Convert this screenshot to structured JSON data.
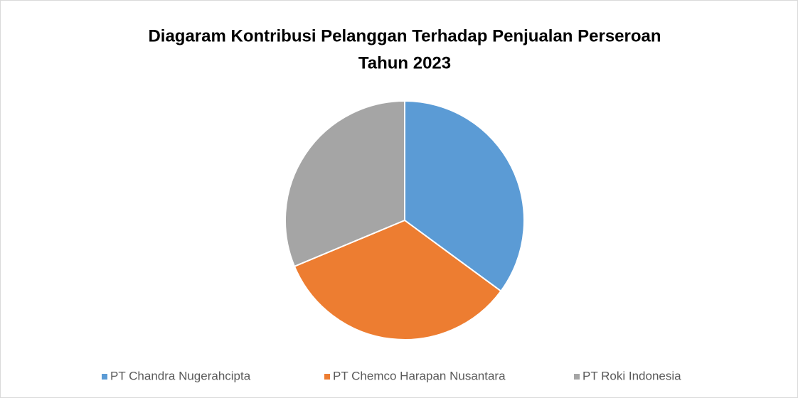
{
  "chart_data": {
    "type": "pie",
    "title": [
      "Diagaram Kontribusi Pelanggan Terhadap Penjualan Perseroan",
      "Tahun 2023"
    ],
    "categories": [
      "PT Chandra Nugerahcipta",
      "PT Chemco Harapan Nusantara",
      "PT Roki Indonesia"
    ],
    "values": [
      35.1,
      33.6,
      31.3
    ],
    "colors": [
      "#5b9bd5",
      "#ed7d31",
      "#a5a5a5"
    ],
    "legend": "bottom"
  }
}
